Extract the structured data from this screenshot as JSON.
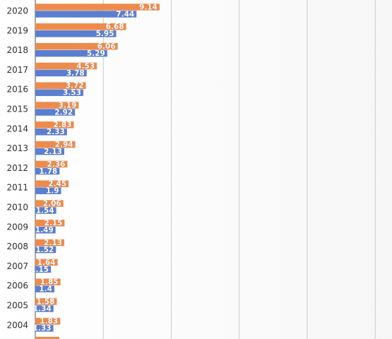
{
  "chart_data": {
    "type": "bar",
    "orientation": "horizontal",
    "categories": [
      "2020",
      "2019",
      "2018",
      "2017",
      "2016",
      "2015",
      "2014",
      "2013",
      "2012",
      "2011",
      "2010",
      "2009",
      "2008",
      "2007",
      "2006",
      "2005",
      "2004"
    ],
    "series": [
      {
        "color": "#ed8b4d",
        "values": [
          9.14,
          6.68,
          6.06,
          4.53,
          3.72,
          3.19,
          2.83,
          2.94,
          2.36,
          2.45,
          2.06,
          2.15,
          2.13,
          1.64,
          1.85,
          1.58,
          1.83
        ],
        "labels": [
          "9.14",
          "6.68",
          "6.06",
          "4.53",
          "3.72",
          "3.19",
          "2.83",
          "2.94",
          "2.36",
          "2.45",
          "2.06",
          "2.15",
          "2.13",
          "1.64",
          "1.85",
          "1.58",
          "1.83"
        ]
      },
      {
        "color": "#5b7fd0",
        "values": [
          7.44,
          5.95,
          5.29,
          3.78,
          3.53,
          2.92,
          2.33,
          2.13,
          1.78,
          1.9,
          1.54,
          1.49,
          1.52,
          1.15,
          1.4,
          1.34,
          1.33
        ],
        "labels": [
          "7.44",
          "5.95",
          "5.29",
          "3.78",
          "3.53",
          "2.92",
          "2.33",
          "2.13",
          "1.78",
          "1.9",
          "1.54",
          "1.49",
          "1.52",
          "1.15",
          "1.4",
          "1.34",
          "1.33"
        ]
      }
    ],
    "xlim": [
      0,
      25
    ],
    "x_gridline_interval": 5,
    "grid": true,
    "data_labels": true,
    "legend": "none",
    "partially_visible_last_category": true
  }
}
